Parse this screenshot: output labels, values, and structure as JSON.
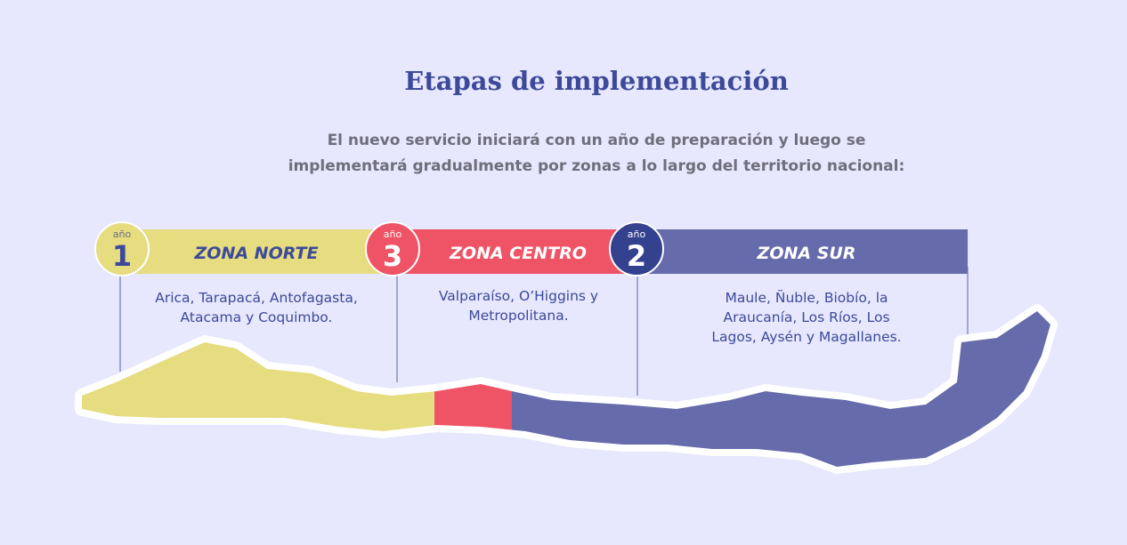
{
  "header": {
    "title": "Etapas de implementación",
    "subtitle": "El nuevo servicio iniciará con un año de preparación y luego se implementará gradualmente por zonas a lo largo del territorio nacional:"
  },
  "zones": [
    {
      "year_label": "año",
      "year": "1",
      "name": "ZONA NORTE",
      "regions": "Arica, Tarapacá, Antofagasta, Atacama y Coquimbo."
    },
    {
      "year_label": "año",
      "year": "3",
      "name": "ZONA CENTRO",
      "regions": "Valparaíso, O’Higgins y Metropolitana."
    },
    {
      "year_label": "año",
      "year": "2",
      "name": "ZONA SUR",
      "regions": "Maule, Ñuble, Biobío, la Araucanía, Los Ríos, Los Lagos, Aysén y Magallanes."
    }
  ]
}
